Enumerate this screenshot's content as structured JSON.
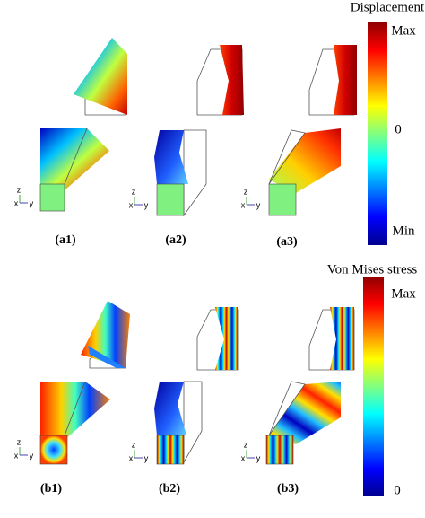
{
  "figure": {
    "top": {
      "colorbar_title": "Displacement",
      "colorbar_labels": [
        "Max",
        "0",
        "Min"
      ],
      "captions": [
        "(a1)",
        "(a2)",
        "(a3)"
      ]
    },
    "bottom": {
      "colorbar_title": "Von Mises stress",
      "colorbar_labels": [
        "Max",
        "0"
      ],
      "captions": [
        "(b1)",
        "(b2)",
        "(b3)"
      ]
    },
    "axis_labels": [
      "z",
      "x",
      "y"
    ]
  }
}
